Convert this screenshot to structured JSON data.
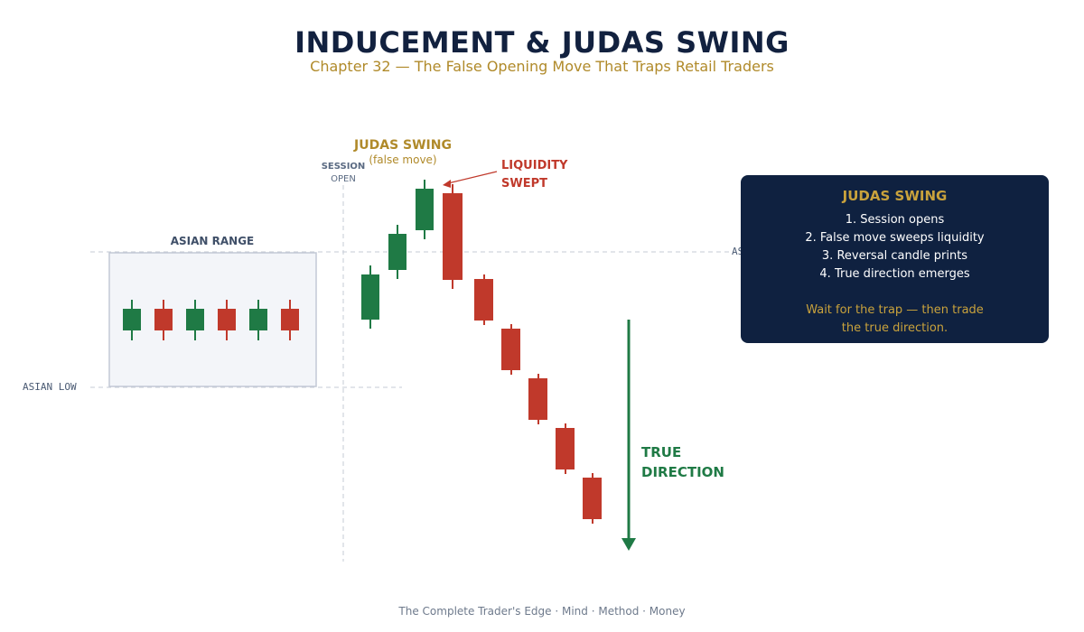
{
  "header": {
    "title": "INDUCEMENT & JUDAS SWING",
    "subtitle": "Chapter 32 — The False Opening Move That Traps Retail Traders"
  },
  "labels": {
    "asian_range": "ASIAN RANGE",
    "asian_low": "ASIAN LOW",
    "asian_high_partial": "AS",
    "session_line1": "SESSION",
    "session_line2": "OPEN",
    "judas_swing": "JUDAS SWING",
    "false_move": "(false move)",
    "liquidity_line1": "LIQUIDITY",
    "liquidity_line2": "SWEPT",
    "true_line1": "TRUE",
    "true_line2": "DIRECTION"
  },
  "info_box": {
    "title": "JUDAS SWING",
    "steps": [
      "1. Session opens",
      "2. False move sweeps liquidity",
      "3. Reversal candle prints",
      "4. True direction emerges"
    ],
    "note_line1": "Wait for the trap — then trade",
    "note_line2": "the true direction."
  },
  "footer": {
    "text": "The Complete Trader's Edge  ·  Mind · Method · Money"
  },
  "colors": {
    "bull": "#1f7a45",
    "bear": "#c0392b",
    "navy": "#12213f",
    "gold": "#b08a2a",
    "slate": "#4a5a73"
  },
  "candles": {
    "asian_range": [
      "bull",
      "bear",
      "bull",
      "bear",
      "bull",
      "bear"
    ],
    "judas_swing": [
      "bull",
      "bull",
      "bull"
    ],
    "reversal": [
      "bear"
    ],
    "true_direction": [
      "bear",
      "bear",
      "bear",
      "bear",
      "bear"
    ]
  }
}
